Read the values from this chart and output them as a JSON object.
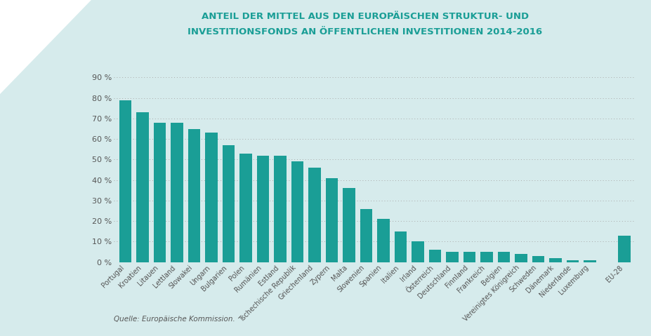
{
  "title_line1": "ANTEIL DER MITTEL AUS DEN EUROPÄISCHEN STRUKTUR- UND",
  "title_line2": "INVESTITIONSFONDS AN ÖFFENTLICHEN INVESTITIONEN 2014-2016",
  "categories": [
    "Portugal",
    "Kroatien",
    "Litauen",
    "Lettland",
    "Slowakei",
    "Ungarn",
    "Bulgarien",
    "Polen",
    "Rumänien",
    "Estland",
    "Tschechische Republik",
    "Griechenland",
    "Zypern",
    "Malta",
    "Slowenien",
    "Spanien",
    "Italien",
    "Irland",
    "Österreich",
    "Deutschland",
    "Finnland",
    "Frankreich",
    "Belgien",
    "Vereinigtes Königreich",
    "Schweden",
    "Dänemark",
    "Niederlande",
    "Luxemburg",
    "EU-28"
  ],
  "values": [
    79,
    73,
    68,
    68,
    65,
    63,
    57,
    53,
    52,
    52,
    49,
    46,
    41,
    36,
    26,
    21,
    15,
    10,
    6,
    5,
    5,
    5,
    5,
    4,
    3,
    2,
    1,
    1,
    13
  ],
  "bar_color": "#1A9E96",
  "background_color": "#D6EBEC",
  "plot_bg_color": "#D6EBEC",
  "ylabel_ticks": [
    0,
    10,
    20,
    30,
    40,
    50,
    60,
    70,
    80,
    90
  ],
  "ylim": [
    0,
    95
  ],
  "source_text": "Quelle: Europäische Kommission.",
  "title_color": "#1A9E96",
  "tick_label_color": "#555555",
  "grid_color": "#aaaaaa"
}
